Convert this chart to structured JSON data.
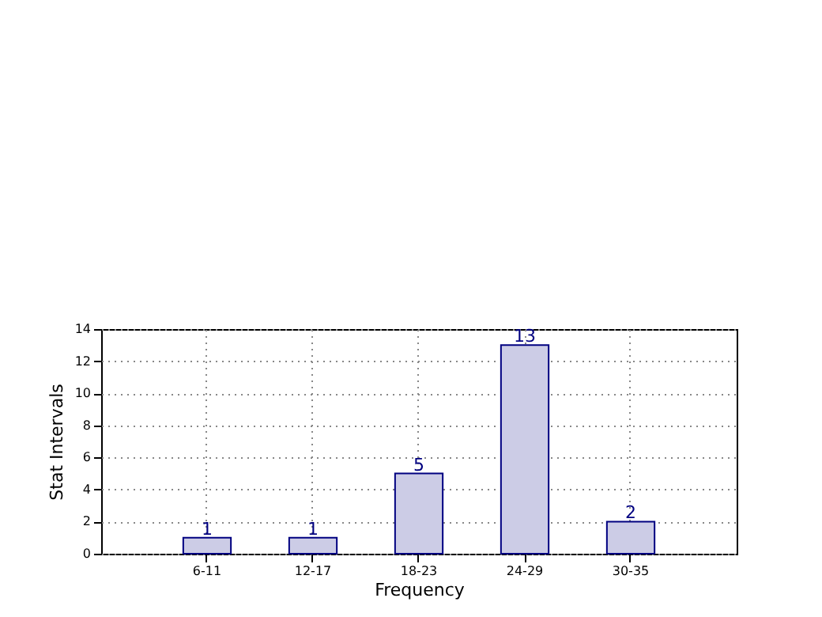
{
  "chart_data": {
    "type": "bar",
    "xlabel": "Frequency",
    "ylabel": "Stat Intervals",
    "categories": [
      "6-11",
      "12-17",
      "18-23",
      "24-29",
      "30-35"
    ],
    "values": [
      1,
      1,
      5,
      13,
      2
    ],
    "color": "#cccce6",
    "ylim": [
      0,
      14
    ],
    "yticks": [
      0,
      2,
      4,
      6,
      8,
      10,
      12,
      14
    ],
    "grid": true,
    "data_labels": true
  }
}
